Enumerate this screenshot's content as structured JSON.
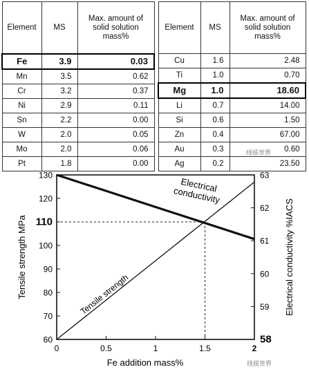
{
  "tables": {
    "left": {
      "headers": [
        "Element",
        "MS",
        "Max. amount of solid solution mass%"
      ],
      "rows": [
        {
          "element": "Fe",
          "ms": "3.9",
          "max": "0.03",
          "highlight": true
        },
        {
          "element": "Mn",
          "ms": "3.5",
          "max": "0.62",
          "highlight": false
        },
        {
          "element": "Cr",
          "ms": "3.2",
          "max": "0.37",
          "highlight": false
        },
        {
          "element": "Ni",
          "ms": "2.9",
          "max": "0.11",
          "highlight": false
        },
        {
          "element": "Sn",
          "ms": "2.2",
          "max": "0.00",
          "highlight": false
        },
        {
          "element": "W",
          "ms": "2.0",
          "max": "0.05",
          "highlight": false
        },
        {
          "element": "Mo",
          "ms": "2.0",
          "max": "0.06",
          "highlight": false
        },
        {
          "element": "Pt",
          "ms": "1.8",
          "max": "0.00",
          "highlight": false
        }
      ]
    },
    "right": {
      "headers": [
        "Element",
        "MS",
        "Max. amount of solid solution mass%"
      ],
      "rows": [
        {
          "element": "Cu",
          "ms": "1.6",
          "max": "2.48",
          "highlight": false
        },
        {
          "element": "Ti",
          "ms": "1.0",
          "max": "0.70",
          "highlight": false
        },
        {
          "element": "Mg",
          "ms": "1.0",
          "max": "18.60",
          "highlight": true
        },
        {
          "element": "Li",
          "ms": "0.7",
          "max": "14.00",
          "highlight": false
        },
        {
          "element": "Si",
          "ms": "0.6",
          "max": "1.50",
          "highlight": false
        },
        {
          "element": "Zn",
          "ms": "0.4",
          "max": "67.00",
          "highlight": false
        },
        {
          "element": "Au",
          "ms": "0.3",
          "max": "0.60",
          "highlight": false
        },
        {
          "element": "Ag",
          "ms": "0.2",
          "max": "23.50",
          "highlight": false
        }
      ]
    }
  },
  "chart_data": {
    "type": "line",
    "xlabel": "Fe addition  mass%",
    "ylabel": "Tensile strength  MPa",
    "y2label": "Electrical conductivity  %IACS",
    "xlim": [
      0,
      2
    ],
    "ylim": [
      60,
      130
    ],
    "y2lim": [
      58,
      63
    ],
    "xticks": [
      "0",
      "0.5",
      "1",
      "1.5",
      "2"
    ],
    "yticks": [
      "60",
      "70",
      "80",
      "90",
      "100",
      "110",
      "120",
      "130"
    ],
    "y2ticks": [
      "58",
      "59",
      "60",
      "61",
      "62",
      "63"
    ],
    "y2ticks_bold": [
      "58"
    ],
    "yticks_bold": [
      "110"
    ],
    "series": [
      {
        "name": "Tensile strength",
        "axis": "left",
        "x": [
          0,
          2
        ],
        "y": [
          60,
          127
        ],
        "stroke": "thin"
      },
      {
        "name": "Electrical conductivity",
        "axis": "right",
        "x": [
          0,
          2
        ],
        "y": [
          63,
          61.05
        ],
        "stroke": "thick"
      }
    ],
    "annotation": {
      "label": "110",
      "x": 1.5,
      "y": 110
    },
    "grid": false
  },
  "watermark": {
    "text": "线缆世界"
  }
}
